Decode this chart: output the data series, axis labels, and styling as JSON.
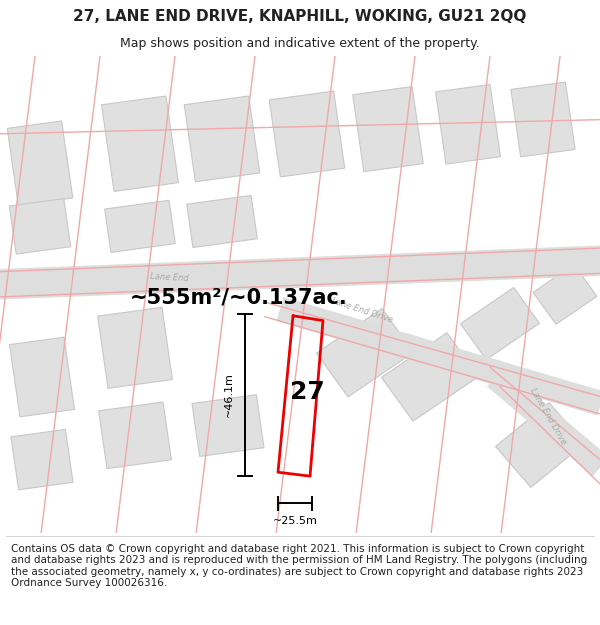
{
  "title": "27, LANE END DRIVE, KNAPHILL, WOKING, GU21 2QQ",
  "subtitle": "Map shows position and indicative extent of the property.",
  "footer": "Contains OS data © Crown copyright and database right 2021. This information is subject to Crown copyright and database rights 2023 and is reproduced with the permission of HM Land Registry. The polygons (including the associated geometry, namely x, y co-ordinates) are subject to Crown copyright and database rights 2023 Ordnance Survey 100026316.",
  "area_label": "~555m²/~0.137ac.",
  "width_label": "~25.5m",
  "height_label": "~46.1m",
  "number_label": "27",
  "building_fill": "#e0e0e0",
  "building_edge": "#c8c8c8",
  "road_fill": "#dedede",
  "road_edge": "#cacaca",
  "pink_line": "#f0a8a8",
  "red_outline": "#ee0000",
  "road_label_color": "#aaaaaa",
  "text_color": "#222222",
  "title_fontsize": 11,
  "subtitle_fontsize": 9,
  "footer_fontsize": 7.5,
  "area_fontsize": 15,
  "dim_fontsize": 8,
  "number_fontsize": 18
}
